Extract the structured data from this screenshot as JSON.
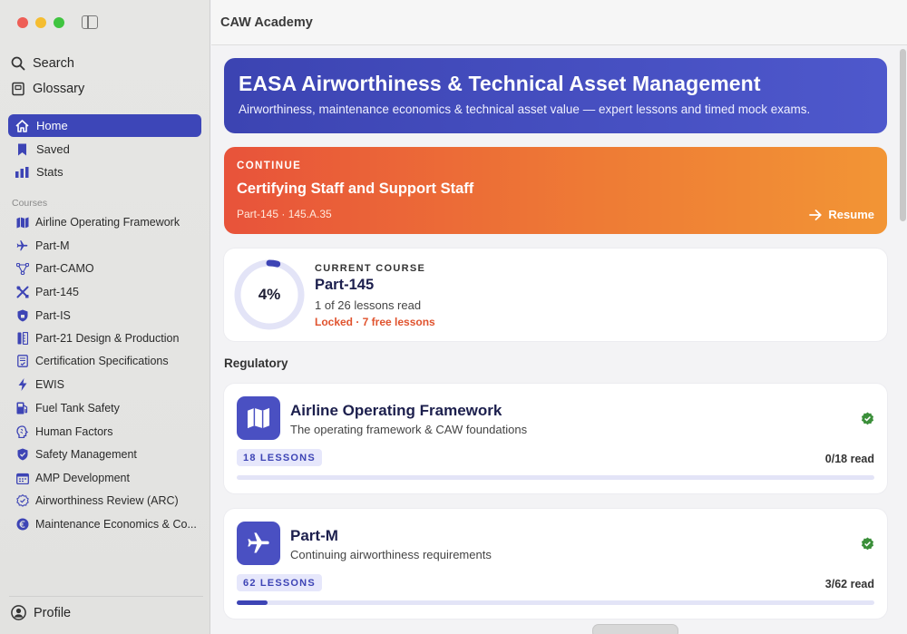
{
  "app": {
    "title": "CAW Academy"
  },
  "sidebar": {
    "search_label": "Search",
    "glossary_label": "Glossary",
    "nav": [
      {
        "label": "Home",
        "icon": "house-icon",
        "active": true
      },
      {
        "label": "Saved",
        "icon": "bookmark-icon",
        "active": false
      },
      {
        "label": "Stats",
        "icon": "chart-icon",
        "active": false
      }
    ],
    "courses_label": "Courses",
    "courses": [
      {
        "label": "Airline Operating Framework",
        "icon": "map-icon"
      },
      {
        "label": "Part-M",
        "icon": "airplane-icon"
      },
      {
        "label": "Part-CAMO",
        "icon": "network-icon"
      },
      {
        "label": "Part-145",
        "icon": "tools-icon"
      },
      {
        "label": "Part-IS",
        "icon": "shield-lock-icon"
      },
      {
        "label": "Part-21 Design & Production",
        "icon": "ruler-icon"
      },
      {
        "label": "Certification Specifications",
        "icon": "document-check-icon"
      },
      {
        "label": "EWIS",
        "icon": "bolt-icon"
      },
      {
        "label": "Fuel Tank Safety",
        "icon": "fuel-icon"
      },
      {
        "label": "Human Factors",
        "icon": "brain-icon"
      },
      {
        "label": "Safety Management",
        "icon": "shield-check-icon"
      },
      {
        "label": "AMP Development",
        "icon": "calendar-icon"
      },
      {
        "label": "Airworthiness Review (ARC)",
        "icon": "seal-check-icon"
      },
      {
        "label": "Maintenance Economics & Co...",
        "icon": "euro-icon"
      }
    ],
    "profile_label": "Profile"
  },
  "hero": {
    "title": "EASA Airworthiness & Technical Asset Management",
    "subtitle": "Airworthiness, maintenance economics & technical asset value — expert lessons and timed mock exams."
  },
  "continue": {
    "label": "CONTINUE",
    "title": "Certifying Staff and Support Staff",
    "meta": "Part-145 · 145.A.35",
    "resume_label": "Resume"
  },
  "current_course": {
    "label": "CURRENT COURSE",
    "percent_text": "4%",
    "percent": 4,
    "title": "Part-145",
    "progress_text": "1 of 26 lessons read",
    "locked_text": "Locked · 7 free lessons"
  },
  "regulatory": {
    "heading": "Regulatory",
    "cards": [
      {
        "title": "Airline Operating Framework",
        "subtitle": "The operating framework & CAW foundations",
        "icon": "map-icon",
        "lessons_badge": "18 LESSONS",
        "read_text": "0/18 read",
        "progress": 0
      },
      {
        "title": "Part-M",
        "subtitle": "Continuing airworthiness requirements",
        "icon": "airplane-icon",
        "lessons_badge": "62 LESSONS",
        "read_text": "3/62 read",
        "progress": 0.048
      }
    ]
  },
  "colors": {
    "accent": "#3d44b5",
    "orange_start": "#e8533a",
    "orange_end": "#f29535",
    "verified_green": "#3b8f3a"
  }
}
